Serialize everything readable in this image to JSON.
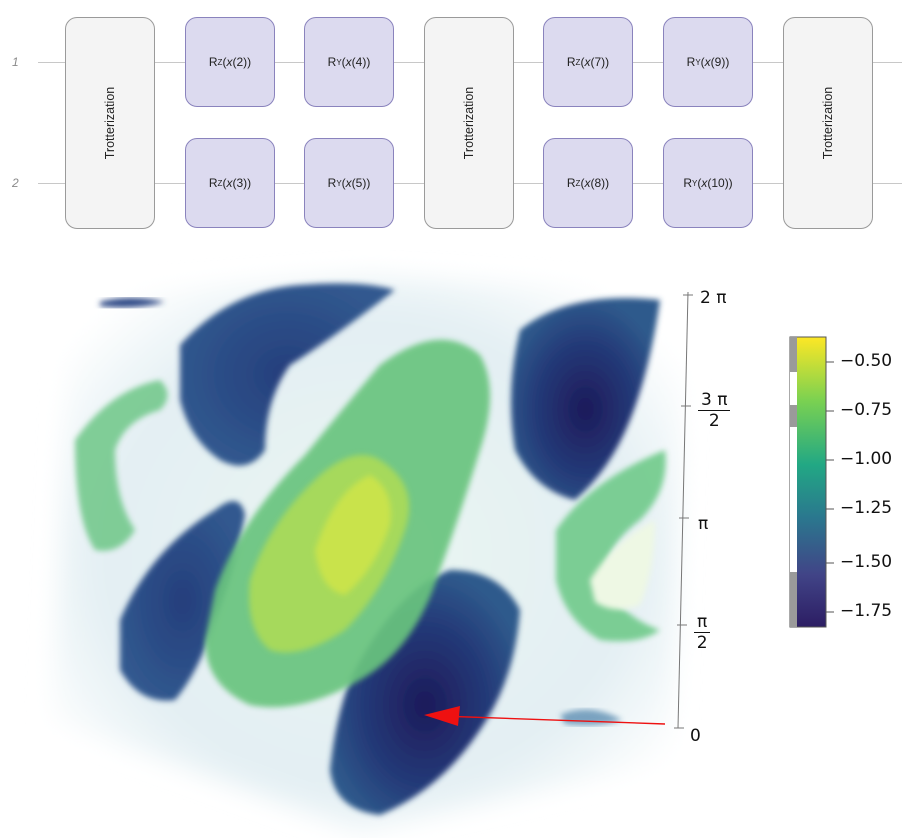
{
  "circuit": {
    "wires": [
      {
        "label": "1"
      },
      {
        "label": "2"
      }
    ],
    "trotterization_label": "Trotterization",
    "gates": [
      {
        "axis": "Z",
        "param": "2"
      },
      {
        "axis": "Y",
        "param": "4"
      },
      {
        "axis": "Z",
        "param": "3"
      },
      {
        "axis": "Y",
        "param": "5"
      },
      {
        "axis": "Z",
        "param": "7"
      },
      {
        "axis": "Y",
        "param": "9"
      },
      {
        "axis": "Z",
        "param": "8"
      },
      {
        "axis": "Y",
        "param": "10"
      }
    ]
  },
  "volume_plot": {
    "z_axis_ticks": {
      "two_pi": "2 π",
      "three_pi_over_2": {
        "num": "3 π",
        "den": "2"
      },
      "pi": "π",
      "pi_over_2": {
        "num": "π",
        "den": "2"
      },
      "zero": "0"
    },
    "colorbar": {
      "ticks": [
        "−0.50",
        "−0.75",
        "−1.00",
        "−1.25",
        "−1.50",
        "−1.75"
      ],
      "range": [
        -1.85,
        -0.4
      ],
      "palette": [
        "#fde725",
        "#7ad151",
        "#22a884",
        "#2a788e",
        "#414487",
        "#2c1d63"
      ]
    },
    "annotation": {
      "arrow_color": "#ee1111"
    }
  }
}
